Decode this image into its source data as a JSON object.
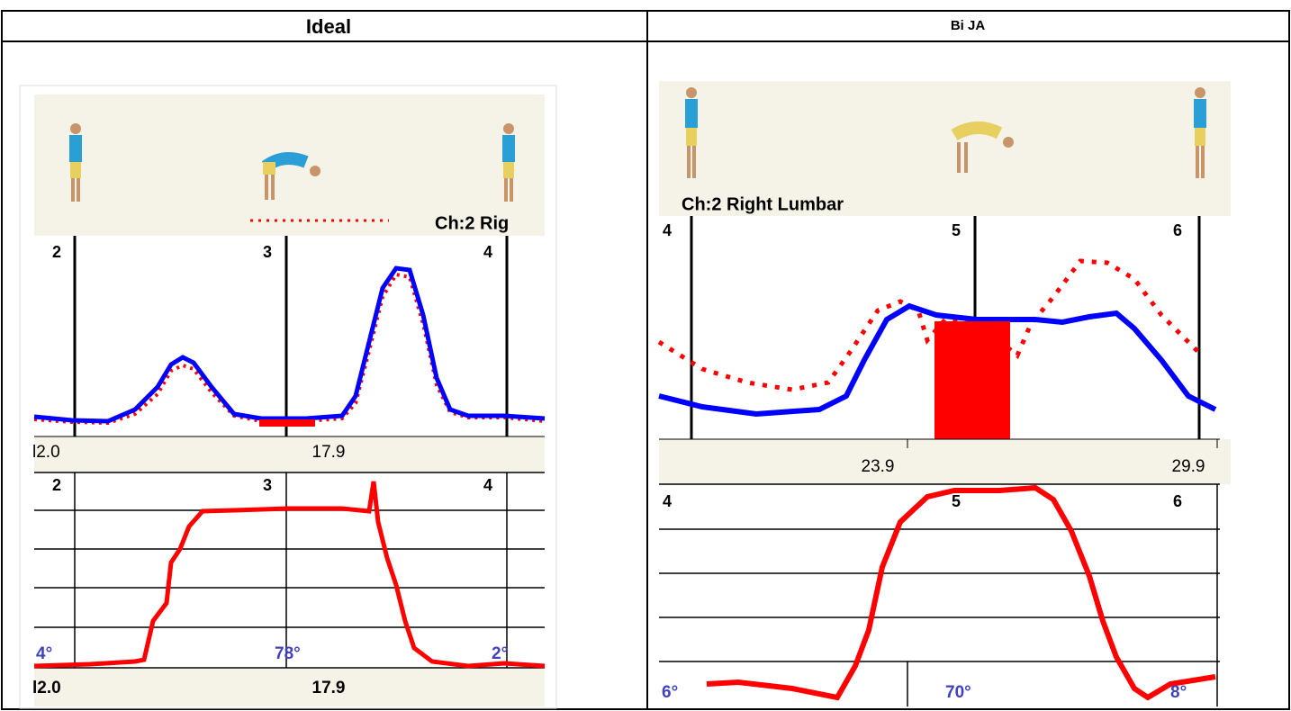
{
  "header": {
    "left": "Ideal",
    "right": "Bi JA"
  },
  "panels": [
    {
      "channel": "Ch:2 Rig",
      "markers": [
        "2",
        "3",
        "4"
      ],
      "times": [
        "l2.0",
        "17.9"
      ],
      "angles": [
        "4°",
        "78°",
        "2°"
      ]
    },
    {
      "channel": "Ch:2 Right Lumbar",
      "markers": [
        "4",
        "5",
        "6"
      ],
      "times": [
        "23.9",
        "29.9"
      ],
      "angles": [
        "6°",
        "70°",
        "8°"
      ]
    }
  ]
}
